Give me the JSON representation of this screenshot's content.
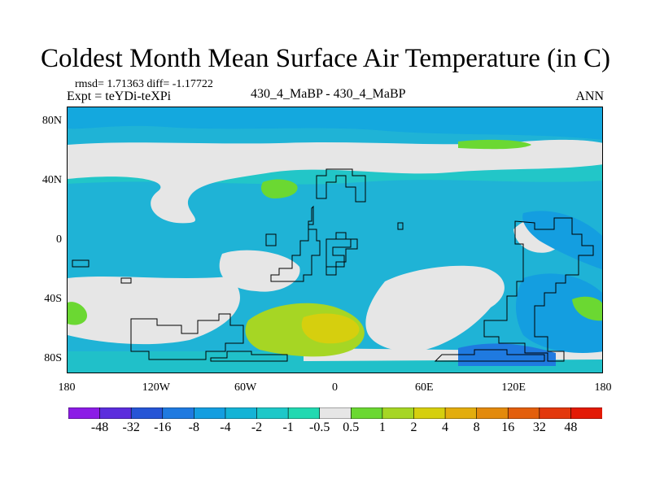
{
  "title": "Coldest Month Mean Surface Air Temperature (in C)",
  "stats": "rmsd= 1.71363 diff= -1.17722",
  "experiment": "Expt = teYDi-teXPi",
  "cases": "430_4_MaBP - 430_4_MaBP",
  "season": "ANN",
  "map": {
    "projection": "cylindrical-equidistant",
    "lon_range": [
      -180,
      180
    ],
    "lat_range": [
      -90,
      90
    ],
    "lat_ticks": [
      {
        "value": 80,
        "label": "80N"
      },
      {
        "value": 40,
        "label": "40N"
      },
      {
        "value": 0,
        "label": "0"
      },
      {
        "value": -40,
        "label": "40S"
      },
      {
        "value": -80,
        "label": "80S"
      }
    ],
    "lon_ticks": [
      {
        "value": -180,
        "label": "180"
      },
      {
        "value": -120,
        "label": "120W"
      },
      {
        "value": -60,
        "label": "60W"
      },
      {
        "value": 0,
        "label": "0"
      },
      {
        "value": 60,
        "label": "60E"
      },
      {
        "value": 120,
        "label": "120E"
      },
      {
        "value": 180,
        "label": "180"
      }
    ]
  },
  "legend": {
    "levels": [
      "-48",
      "-32",
      "-16",
      "-8",
      "-4",
      "-2",
      "-1",
      "-0.5",
      "0.5",
      "1",
      "2",
      "4",
      "8",
      "16",
      "32",
      "48"
    ],
    "colors": [
      "#8c1ce6",
      "#5c2ddd",
      "#2655d6",
      "#1f7ae0",
      "#149ee0",
      "#14b3d6",
      "#1ec8c8",
      "#22d9b1",
      "#e6e6e6",
      "#6bd832",
      "#a6d624",
      "#d6cf0e",
      "#e3ad0e",
      "#e38a0c",
      "#e35f0c",
      "#e3380c",
      "#e31a06"
    ]
  }
}
